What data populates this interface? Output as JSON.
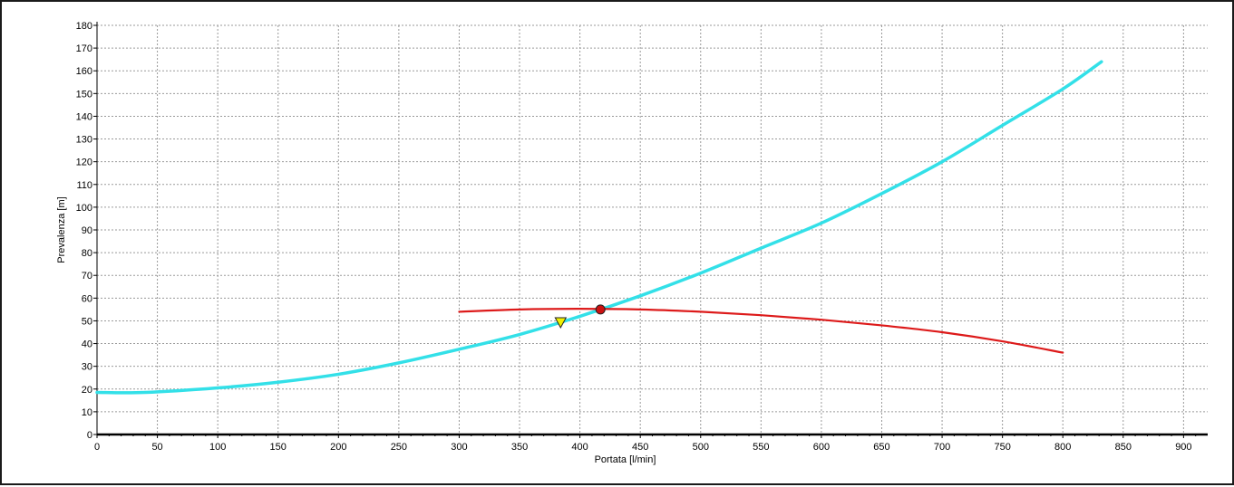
{
  "chart_data": {
    "type": "line",
    "title": "",
    "xlabel": "Portata [l/min]",
    "ylabel": "Prevalenza [m]",
    "xlim": [
      0,
      920
    ],
    "ylim": [
      0,
      180
    ],
    "xticks": [
      0,
      50,
      100,
      150,
      200,
      250,
      300,
      350,
      400,
      450,
      500,
      550,
      600,
      650,
      700,
      750,
      800,
      850,
      900
    ],
    "yticks": [
      0,
      10,
      20,
      30,
      40,
      50,
      60,
      70,
      80,
      90,
      100,
      110,
      120,
      130,
      140,
      150,
      160,
      170,
      180
    ],
    "grid": true,
    "series": [
      {
        "color": "#33e0e8",
        "points": [
          [
            0,
            18.5
          ],
          [
            40,
            18.5
          ],
          [
            100,
            20.5
          ],
          [
            150,
            23
          ],
          [
            200,
            26.5
          ],
          [
            250,
            31.5
          ],
          [
            300,
            37.5
          ],
          [
            350,
            44
          ],
          [
            400,
            52
          ],
          [
            450,
            61
          ],
          [
            500,
            71
          ],
          [
            550,
            82
          ],
          [
            600,
            93
          ],
          [
            650,
            106
          ],
          [
            700,
            120
          ],
          [
            750,
            136
          ],
          [
            800,
            152
          ],
          [
            832,
            164
          ]
        ]
      },
      {
        "color": "#dd1a1a",
        "points": [
          [
            300,
            54
          ],
          [
            350,
            55
          ],
          [
            400,
            55.3
          ],
          [
            450,
            55
          ],
          [
            500,
            54
          ],
          [
            550,
            52.5
          ],
          [
            600,
            50.5
          ],
          [
            650,
            48
          ],
          [
            700,
            45
          ],
          [
            750,
            41
          ],
          [
            800,
            36
          ]
        ]
      }
    ],
    "markers": [
      {
        "shape": "circle",
        "color": "#cc1111",
        "x": 417,
        "y": 55
      },
      {
        "shape": "triangle-down",
        "color": "#f0f000",
        "x": 384,
        "y": 49
      }
    ]
  }
}
